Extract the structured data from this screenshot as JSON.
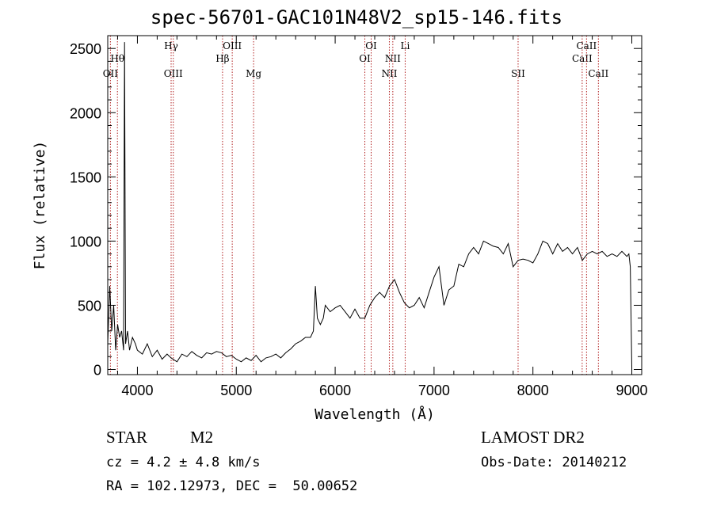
{
  "chart_data": {
    "type": "line",
    "title": "spec-56701-GAC101N48V2_sp15-146.fits",
    "xlabel": "Wavelength (Å)",
    "ylabel": "Flux (relative)",
    "xlim": [
      3700,
      9100
    ],
    "ylim": [
      -40,
      2600
    ],
    "xticks": [
      4000,
      5000,
      6000,
      7000,
      8000,
      9000
    ],
    "yticks": [
      0,
      500,
      1000,
      1500,
      2000,
      2500
    ],
    "xtick_labels": [
      "4000",
      "5000",
      "6000",
      "7000",
      "8000",
      "9000"
    ],
    "ytick_labels": [
      "0",
      "500",
      "1000",
      "1500",
      "2000",
      "2500"
    ],
    "grid": false,
    "line_color": "#000000",
    "marker_color": "#b22222",
    "series": [
      {
        "x": [
          3700,
          3720,
          3740,
          3760,
          3780,
          3800,
          3820,
          3840,
          3860,
          3870,
          3880,
          3900,
          3920,
          3950,
          3980,
          4000,
          4050,
          4100,
          4150,
          4200,
          4250,
          4300,
          4340,
          4400,
          4450,
          4500,
          4550,
          4600,
          4650,
          4700,
          4750,
          4800,
          4850,
          4900,
          4950,
          5000,
          5050,
          5100,
          5150,
          5200,
          5250,
          5300,
          5350,
          5400,
          5450,
          5500,
          5550,
          5600,
          5650,
          5700,
          5750,
          5780,
          5800,
          5820,
          5850,
          5880,
          5900,
          5950,
          6000,
          6050,
          6100,
          6150,
          6200,
          6250,
          6300,
          6350,
          6400,
          6450,
          6500,
          6550,
          6600,
          6650,
          6700,
          6750,
          6800,
          6850,
          6900,
          6950,
          7000,
          7050,
          7100,
          7150,
          7200,
          7250,
          7300,
          7350,
          7400,
          7450,
          7500,
          7550,
          7600,
          7650,
          7700,
          7750,
          7800,
          7850,
          7900,
          7950,
          8000,
          8050,
          8100,
          8150,
          8200,
          8250,
          8300,
          8350,
          8400,
          8450,
          8500,
          8550,
          8600,
          8650,
          8700,
          8750,
          8800,
          8850,
          8900,
          8950,
          8970,
          8985,
          9000
        ],
        "values": [
          200,
          650,
          300,
          500,
          150,
          350,
          250,
          300,
          150,
          2550,
          200,
          300,
          150,
          250,
          200,
          150,
          120,
          200,
          100,
          150,
          80,
          120,
          90,
          60,
          120,
          100,
          140,
          110,
          90,
          130,
          120,
          140,
          130,
          100,
          110,
          80,
          60,
          90,
          70,
          110,
          60,
          90,
          100,
          120,
          90,
          130,
          160,
          200,
          220,
          250,
          250,
          300,
          650,
          400,
          350,
          400,
          500,
          450,
          480,
          500,
          450,
          400,
          470,
          400,
          400,
          500,
          560,
          600,
          560,
          650,
          700,
          600,
          520,
          480,
          500,
          560,
          480,
          600,
          720,
          800,
          500,
          620,
          650,
          820,
          800,
          900,
          950,
          900,
          1000,
          980,
          960,
          950,
          900,
          980,
          800,
          850,
          860,
          850,
          830,
          900,
          1000,
          980,
          900,
          980,
          920,
          950,
          900,
          950,
          850,
          900,
          920,
          900,
          920,
          880,
          900,
          880,
          920,
          880,
          900,
          800,
          20
        ]
      }
    ],
    "markers": [
      {
        "label": "OII",
        "x": 3727,
        "row": 3
      },
      {
        "label": "Hθ",
        "x": 3798,
        "row": 2
      },
      {
        "label": "Hγ",
        "x": 4341,
        "row": 1
      },
      {
        "label": "OIII",
        "x": 4363,
        "row": 3
      },
      {
        "label": "Hβ",
        "x": 4861,
        "row": 2
      },
      {
        "label": "OIII",
        "x": 4959,
        "row": 1
      },
      {
        "label": "Mg",
        "x": 5175,
        "row": 3
      },
      {
        "label": "OI",
        "x": 6300,
        "row": 2
      },
      {
        "label": "OI",
        "x": 6364,
        "row": 1
      },
      {
        "label": "NII",
        "x": 6548,
        "row": 3
      },
      {
        "label": "NII",
        "x": 6583,
        "row": 2
      },
      {
        "label": "Li",
        "x": 6708,
        "row": 1
      },
      {
        "label": "SII",
        "x": 7850,
        "row": 3
      },
      {
        "label": "CaII",
        "x": 8498,
        "row": 2
      },
      {
        "label": "CaII",
        "x": 8542,
        "row": 1
      },
      {
        "label": "CaII",
        "x": 8662,
        "row": 3
      }
    ]
  },
  "footer": {
    "object_class": "STAR",
    "subclass": "M2",
    "survey": "LAMOST DR2",
    "cz": "cz = 4.2 ± 4.8 km/s",
    "obs_date": "Obs-Date: 20140212",
    "coords": "RA = 102.12973, DEC =  50.00652"
  }
}
